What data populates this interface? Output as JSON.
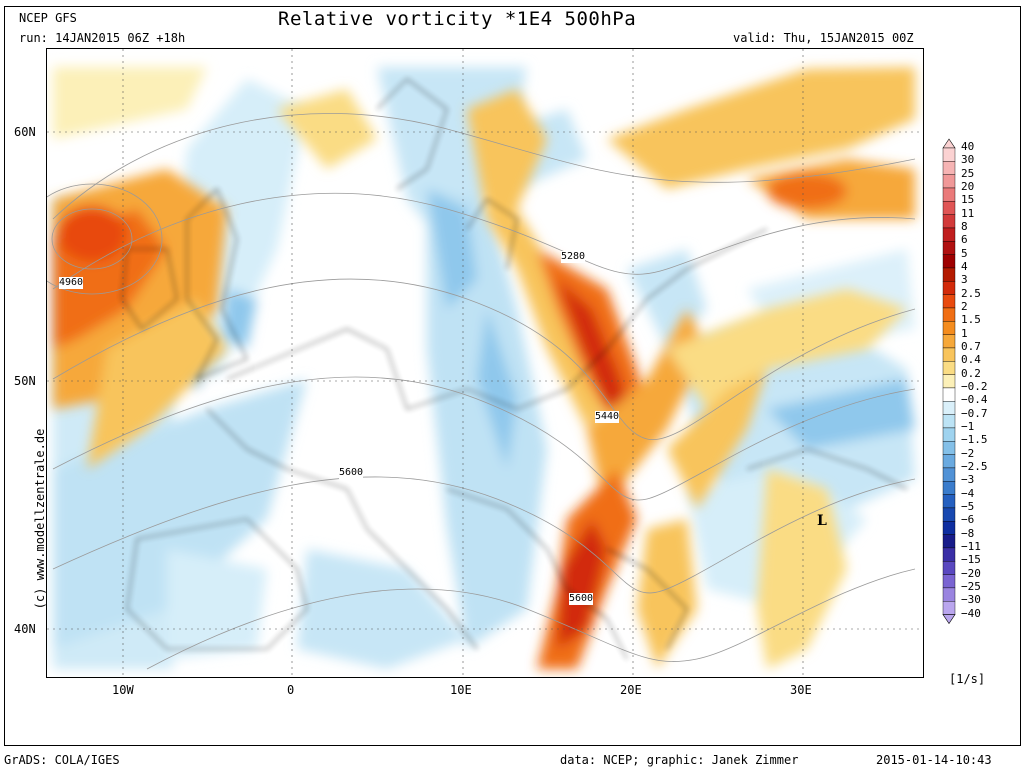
{
  "header": {
    "model": "NCEP GFS",
    "run": "run: 14JAN2015 06Z +18h",
    "title": "Relative vorticity *1E4 500hPa",
    "valid": "valid: Thu, 15JAN2015 00Z"
  },
  "side_credit": "(c) www.modellzentrale.de",
  "lat_labels": [
    "60N",
    "50N",
    "40N"
  ],
  "lon_labels": [
    "10W",
    "0",
    "10E",
    "20E",
    "30E"
  ],
  "contour_labels": [
    "4960",
    "5280",
    "5440",
    "5600",
    "5600"
  ],
  "low_marker": "L",
  "legend": {
    "labels": [
      "40",
      "30",
      "25",
      "20",
      "15",
      "11",
      "8",
      "6",
      "5",
      "4",
      "3",
      "2.5",
      "2",
      "1.5",
      "1",
      "0.7",
      "0.4",
      "0.2",
      "−0.2",
      "−0.4",
      "−0.7",
      "−1",
      "−1.5",
      "−2",
      "−2.5",
      "−3",
      "−4",
      "−5",
      "−6",
      "−8",
      "−11",
      "−15",
      "−20",
      "−25",
      "−30",
      "−40"
    ],
    "colors": [
      "#fbd2d2",
      "#f6b4b4",
      "#f09898",
      "#ea7a7a",
      "#e05555",
      "#d23a3a",
      "#c01e1e",
      "#b01010",
      "#9e0000",
      "#b41a00",
      "#d22a0a",
      "#e84a0e",
      "#f06e14",
      "#f48c1e",
      "#f6a83a",
      "#f8c45c",
      "#fadc84",
      "#fcf0b8",
      "#ffffff",
      "#daf0fa",
      "#bce3f5",
      "#9fd3ef",
      "#84c0e8",
      "#6aaae0",
      "#5192d6",
      "#3a7ccc",
      "#2560c0",
      "#1848b0",
      "#0e2ea0",
      "#181c8a",
      "#3a2ea6",
      "#5a48c0",
      "#7a64d2",
      "#9a84e0",
      "#baa6ee"
    ],
    "unit": "[1/s]"
  },
  "footer": {
    "left": "GrADS: COLA/IGES",
    "data": "data: NCEP; graphic: Janek Zimmer",
    "timestamp": "2015-01-14-10:43"
  }
}
